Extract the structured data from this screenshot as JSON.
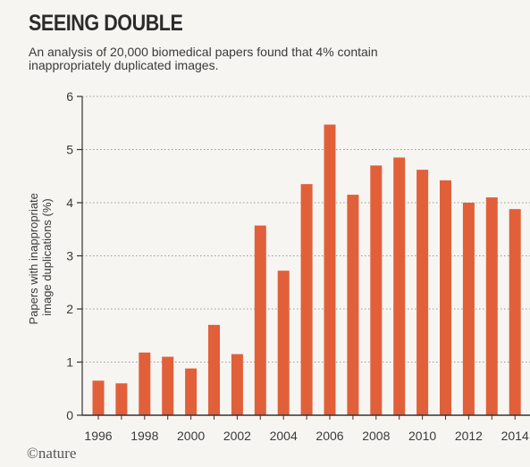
{
  "title": "SEEING DOUBLE",
  "subtitle": "An analysis of 20,000 biomedical papers found that 4% contain inappropriately duplicated images.",
  "logo_text": "©nature",
  "colors": {
    "bar": "#e1603a",
    "axis": "#333333",
    "grid": "#9a9a9a",
    "text": "#3a3a3a"
  },
  "chart_data": {
    "type": "bar",
    "title": "SEEING DOUBLE",
    "subtitle": "An analysis of 20,000 biomedical papers found that 4% contain inappropriately duplicated images.",
    "ylabel_lines": [
      "Papers with inappropriate",
      "image duplications (%)"
    ],
    "xlabel": "",
    "categories": [
      "1996",
      "1997",
      "1998",
      "1999",
      "2000",
      "2001",
      "2002",
      "2003",
      "2004",
      "2005",
      "2006",
      "2007",
      "2008",
      "2009",
      "2010",
      "2011",
      "2012",
      "2013",
      "2014"
    ],
    "values": [
      0.65,
      0.6,
      1.18,
      1.1,
      0.88,
      1.7,
      1.15,
      3.57,
      2.72,
      4.35,
      5.47,
      4.15,
      4.7,
      4.85,
      4.62,
      4.42,
      4.0,
      4.1,
      3.88
    ],
    "x_tick_labels": [
      "1996",
      "1998",
      "2000",
      "2002",
      "2004",
      "2006",
      "2008",
      "2010",
      "2012",
      "2014"
    ],
    "y_ticks": [
      0,
      1,
      2,
      3,
      4,
      5,
      6
    ],
    "ylim": [
      0,
      6
    ],
    "grid": "horizontal dotted",
    "legend": "none"
  }
}
